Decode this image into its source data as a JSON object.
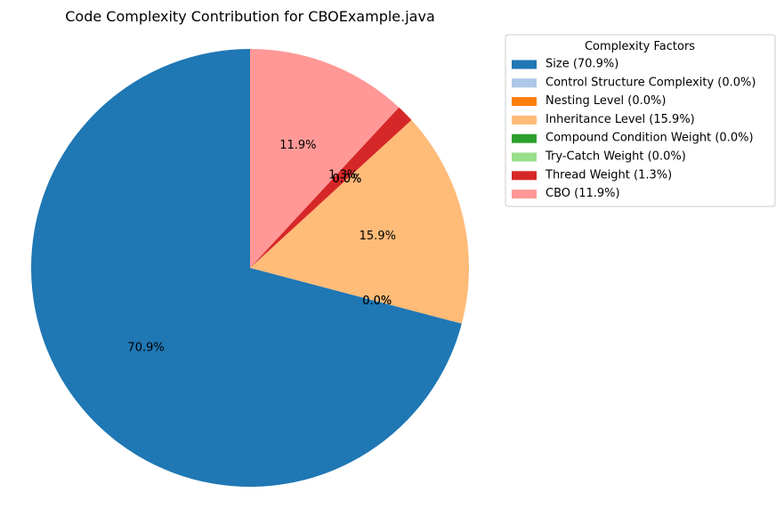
{
  "chart_data": {
    "type": "pie",
    "title": "Code Complexity Contribution for CBOExample.java",
    "start_angle_deg": 90,
    "direction": "counterclockwise",
    "legend": {
      "title": "Complexity Factors",
      "placement": "upper-right, outside plot"
    },
    "slices": [
      {
        "label": "Size",
        "value": 70.9,
        "pct_label": "70.9%",
        "legend_label": "Size (70.9%)",
        "color": "#1f77b4"
      },
      {
        "label": "Control Structure Complexity",
        "value": 0.0,
        "pct_label": "0.0%",
        "legend_label": "Control Structure Complexity (0.0%)",
        "color": "#aec7e8"
      },
      {
        "label": "Nesting Level",
        "value": 0.0,
        "pct_label": "0.0%",
        "legend_label": "Nesting Level (0.0%)",
        "color": "#ff7f0e"
      },
      {
        "label": "Inheritance Level",
        "value": 15.9,
        "pct_label": "15.9%",
        "legend_label": "Inheritance Level (15.9%)",
        "color": "#ffbb78"
      },
      {
        "label": "Compound Condition Weight",
        "value": 0.0,
        "pct_label": "0.0%",
        "legend_label": "Compound Condition Weight (0.0%)",
        "color": "#2ca02c"
      },
      {
        "label": "Try-Catch Weight",
        "value": 0.0,
        "pct_label": "0.0%",
        "legend_label": "Try-Catch Weight (0.0%)",
        "color": "#98df8a"
      },
      {
        "label": "Thread Weight",
        "value": 1.3,
        "pct_label": "1.3%",
        "legend_label": "Thread Weight (1.3%)",
        "color": "#d62728"
      },
      {
        "label": "CBO",
        "value": 11.9,
        "pct_label": "11.9%",
        "legend_label": "CBO (11.9%)",
        "color": "#ff9896"
      }
    ]
  }
}
